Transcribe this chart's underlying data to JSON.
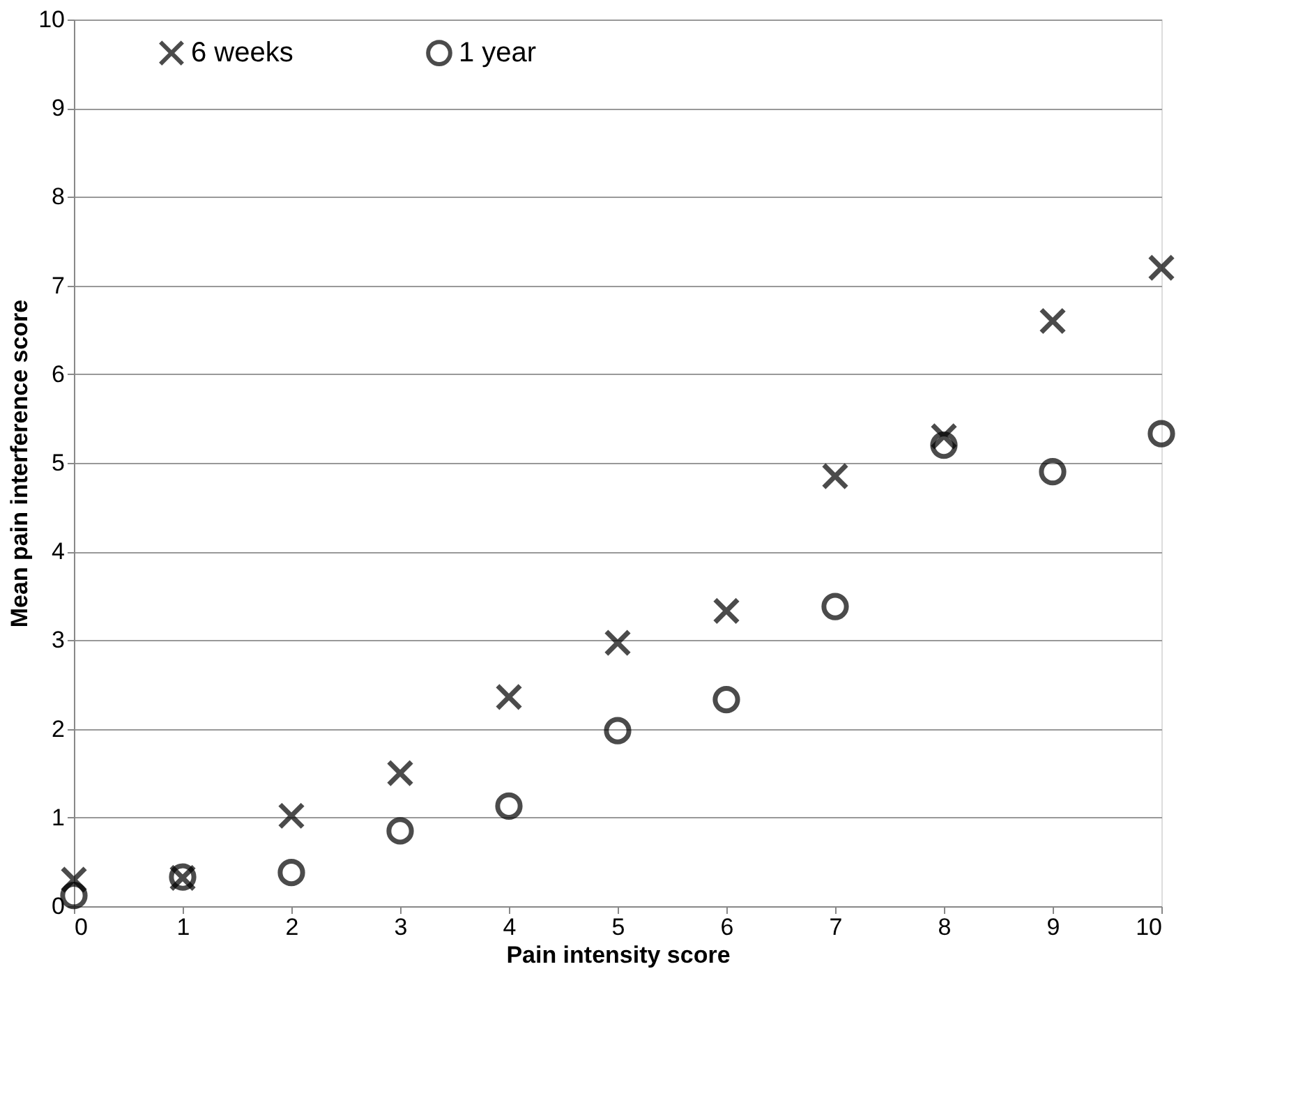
{
  "chart_data": {
    "type": "scatter",
    "xlabel": "Pain intensity score",
    "ylabel": "Mean pain interference score",
    "x": [
      0,
      1,
      2,
      3,
      4,
      5,
      6,
      7,
      8,
      9,
      10
    ],
    "series": [
      {
        "name": "6 weeks",
        "color": "#000000",
        "marker": "cross",
        "values": [
          0.3,
          0.32,
          1.02,
          1.5,
          2.36,
          2.97,
          3.33,
          4.85,
          5.3,
          6.6,
          7.2
        ]
      },
      {
        "name": "1 year",
        "color": "#000000",
        "marker": "circle",
        "values": [
          0.12,
          0.33,
          0.38,
          0.85,
          1.13,
          1.98,
          2.33,
          3.38,
          5.2,
          4.9,
          5.33
        ]
      }
    ],
    "xlim": [
      0,
      10
    ],
    "xticks": [
      0,
      1,
      2,
      3,
      4,
      5,
      6,
      7,
      8,
      9,
      10
    ],
    "ylim": [
      0,
      10
    ],
    "yticks": [
      0,
      1,
      2,
      3,
      4,
      5,
      6,
      7,
      8,
      9,
      10
    ],
    "grid": "y",
    "legend": "top left"
  }
}
